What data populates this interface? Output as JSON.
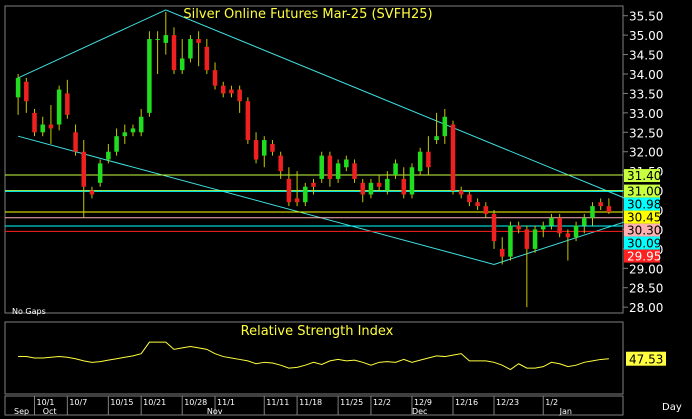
{
  "chart_data": [
    {
      "type": "candlestick",
      "title": "Silver Online Futures Mar-25 (SVFH25)",
      "gaps_label": "No Gaps",
      "period_label": "Day",
      "ylim": [
        27.85,
        35.75
      ],
      "y_ticks": [
        "35.50",
        "35.00",
        "34.50",
        "34.00",
        "33.50",
        "33.00",
        "32.50",
        "32.00",
        "31.50",
        "31.00",
        "30.50",
        "30.00",
        "29.50",
        "29.00",
        "28.50",
        "28.00"
      ],
      "x_day_labels": [
        "10/1",
        "10/7",
        "10/15",
        "10/21",
        "10/28",
        "11/1",
        "11/11",
        "11/18",
        "11/25",
        "12/2",
        "12/9",
        "12/16",
        "12/23",
        "1/2"
      ],
      "x_month_labels": [
        "Sep",
        "Oct",
        "Nov",
        "Dec",
        "Jan"
      ],
      "candles": [
        {
          "o": 33.4,
          "h": 34.0,
          "l": 32.95,
          "c": 33.9
        },
        {
          "o": 33.8,
          "h": 33.9,
          "l": 33.0,
          "c": 33.3
        },
        {
          "o": 33.0,
          "h": 33.1,
          "l": 32.4,
          "c": 32.5
        },
        {
          "o": 32.5,
          "h": 32.9,
          "l": 32.4,
          "c": 32.7
        },
        {
          "o": 32.7,
          "h": 33.2,
          "l": 32.2,
          "c": 32.6
        },
        {
          "o": 32.7,
          "h": 33.7,
          "l": 32.55,
          "c": 33.6
        },
        {
          "o": 33.5,
          "h": 33.85,
          "l": 32.85,
          "c": 32.95
        },
        {
          "o": 32.5,
          "h": 32.7,
          "l": 31.9,
          "c": 32.0
        },
        {
          "o": 32.0,
          "h": 32.3,
          "l": 30.3,
          "c": 31.1
        },
        {
          "o": 31.0,
          "h": 31.1,
          "l": 30.8,
          "c": 30.9
        },
        {
          "o": 31.2,
          "h": 31.8,
          "l": 31.1,
          "c": 31.7
        },
        {
          "o": 31.8,
          "h": 32.2,
          "l": 31.7,
          "c": 32.0
        },
        {
          "o": 32.0,
          "h": 32.6,
          "l": 31.9,
          "c": 32.4
        },
        {
          "o": 32.4,
          "h": 32.7,
          "l": 32.2,
          "c": 32.5
        },
        {
          "o": 32.5,
          "h": 32.7,
          "l": 32.4,
          "c": 32.6
        },
        {
          "o": 32.5,
          "h": 33.1,
          "l": 32.4,
          "c": 32.9
        },
        {
          "o": 33.0,
          "h": 35.1,
          "l": 32.9,
          "c": 34.9
        },
        {
          "o": 34.9,
          "h": 35.1,
          "l": 34.0,
          "c": 34.9
        },
        {
          "o": 34.8,
          "h": 35.6,
          "l": 34.5,
          "c": 35.0
        },
        {
          "o": 35.0,
          "h": 35.2,
          "l": 34.0,
          "c": 34.1
        },
        {
          "o": 34.1,
          "h": 34.9,
          "l": 34.0,
          "c": 34.4
        },
        {
          "o": 34.4,
          "h": 35.0,
          "l": 34.3,
          "c": 34.9
        },
        {
          "o": 34.9,
          "h": 35.1,
          "l": 34.2,
          "c": 34.8
        },
        {
          "o": 34.7,
          "h": 34.9,
          "l": 34.0,
          "c": 34.1
        },
        {
          "o": 34.1,
          "h": 34.3,
          "l": 33.6,
          "c": 33.7
        },
        {
          "o": 33.7,
          "h": 33.8,
          "l": 33.4,
          "c": 33.5
        },
        {
          "o": 33.6,
          "h": 33.7,
          "l": 33.4,
          "c": 33.5
        },
        {
          "o": 33.6,
          "h": 33.7,
          "l": 33.0,
          "c": 33.3
        },
        {
          "o": 33.3,
          "h": 33.4,
          "l": 32.2,
          "c": 32.3
        },
        {
          "o": 32.3,
          "h": 32.5,
          "l": 31.7,
          "c": 31.8
        },
        {
          "o": 31.9,
          "h": 32.4,
          "l": 31.6,
          "c": 32.3
        },
        {
          "o": 32.2,
          "h": 32.3,
          "l": 31.9,
          "c": 32.0
        },
        {
          "o": 31.9,
          "h": 32.0,
          "l": 31.3,
          "c": 31.5
        },
        {
          "o": 31.3,
          "h": 31.6,
          "l": 30.6,
          "c": 30.7
        },
        {
          "o": 30.8,
          "h": 31.5,
          "l": 30.6,
          "c": 30.7
        },
        {
          "o": 30.7,
          "h": 31.2,
          "l": 30.6,
          "c": 31.1
        },
        {
          "o": 31.2,
          "h": 31.3,
          "l": 30.9,
          "c": 31.1
        },
        {
          "o": 31.3,
          "h": 32.0,
          "l": 31.2,
          "c": 31.9
        },
        {
          "o": 31.9,
          "h": 32.0,
          "l": 31.1,
          "c": 31.3
        },
        {
          "o": 31.3,
          "h": 31.8,
          "l": 31.2,
          "c": 31.7
        },
        {
          "o": 31.6,
          "h": 31.9,
          "l": 31.5,
          "c": 31.8
        },
        {
          "o": 31.7,
          "h": 31.8,
          "l": 31.2,
          "c": 31.3
        },
        {
          "o": 31.2,
          "h": 31.3,
          "l": 30.7,
          "c": 30.9
        },
        {
          "o": 30.9,
          "h": 31.3,
          "l": 30.8,
          "c": 31.2
        },
        {
          "o": 31.2,
          "h": 31.4,
          "l": 31.0,
          "c": 31.1
        },
        {
          "o": 31.0,
          "h": 31.5,
          "l": 30.9,
          "c": 31.3
        },
        {
          "o": 31.4,
          "h": 31.8,
          "l": 31.3,
          "c": 31.7
        },
        {
          "o": 31.3,
          "h": 31.6,
          "l": 30.8,
          "c": 30.9
        },
        {
          "o": 30.9,
          "h": 31.7,
          "l": 30.8,
          "c": 31.6
        },
        {
          "o": 31.5,
          "h": 32.1,
          "l": 31.4,
          "c": 32.0
        },
        {
          "o": 32.0,
          "h": 32.4,
          "l": 31.4,
          "c": 31.6
        },
        {
          "o": 32.3,
          "h": 33.0,
          "l": 32.2,
          "c": 32.4
        },
        {
          "o": 32.4,
          "h": 33.1,
          "l": 32.2,
          "c": 32.9
        },
        {
          "o": 32.7,
          "h": 32.8,
          "l": 30.9,
          "c": 31.0
        },
        {
          "o": 31.0,
          "h": 31.1,
          "l": 30.8,
          "c": 30.9
        },
        {
          "o": 30.9,
          "h": 31.0,
          "l": 30.6,
          "c": 30.7
        },
        {
          "o": 30.7,
          "h": 30.8,
          "l": 30.5,
          "c": 30.6
        },
        {
          "o": 30.6,
          "h": 30.7,
          "l": 30.3,
          "c": 30.4
        },
        {
          "o": 30.4,
          "h": 30.5,
          "l": 29.5,
          "c": 29.7
        },
        {
          "o": 29.5,
          "h": 29.8,
          "l": 29.1,
          "c": 29.3
        },
        {
          "o": 29.3,
          "h": 30.2,
          "l": 29.2,
          "c": 30.1
        },
        {
          "o": 30.1,
          "h": 30.2,
          "l": 29.9,
          "c": 30.0
        },
        {
          "o": 30.0,
          "h": 30.1,
          "l": 28.0,
          "c": 29.5
        },
        {
          "o": 29.5,
          "h": 30.1,
          "l": 29.4,
          "c": 30.0
        },
        {
          "o": 30.0,
          "h": 30.2,
          "l": 29.8,
          "c": 30.1
        },
        {
          "o": 30.1,
          "h": 30.4,
          "l": 30.0,
          "c": 30.3
        },
        {
          "o": 30.3,
          "h": 30.4,
          "l": 29.8,
          "c": 29.9
        },
        {
          "o": 29.9,
          "h": 30.0,
          "l": 29.2,
          "c": 29.8
        },
        {
          "o": 29.8,
          "h": 30.2,
          "l": 29.7,
          "c": 30.1
        },
        {
          "o": 30.1,
          "h": 30.4,
          "l": 29.9,
          "c": 30.3
        },
        {
          "o": 30.3,
          "h": 30.7,
          "l": 30.1,
          "c": 30.6
        },
        {
          "o": 30.7,
          "h": 30.8,
          "l": 30.5,
          "c": 30.6
        },
        {
          "o": 30.6,
          "h": 30.8,
          "l": 30.4,
          "c": 30.45
        }
      ],
      "hlines": [
        {
          "value": 31.4,
          "label": "31.40",
          "color": "#c8ff40",
          "text_color": "#000000"
        },
        {
          "value": 31.0,
          "label": "31.00",
          "color": "#c8ff40",
          "text_color": "#000000"
        },
        {
          "value": 30.98,
          "label": "30.98",
          "color": "#00ffff",
          "text_color": "#000000"
        },
        {
          "value": 30.45,
          "label": "30.45",
          "color": "#ffff00",
          "text_color": "#000000"
        },
        {
          "value": 30.3,
          "label": "30.30",
          "color": "#ffb0b0",
          "text_color": "#000000"
        },
        {
          "value": 30.09,
          "label": "30.09",
          "color": "#00ffff",
          "text_color": "#000000"
        },
        {
          "value": 29.95,
          "label": "29.95",
          "color": "#ff2020",
          "text_color": "#ffffff"
        }
      ],
      "channel": {
        "upper": [
          [
            0,
            33.9
          ],
          [
            18,
            35.65
          ],
          [
            74,
            30.8
          ]
        ],
        "lower": [
          [
            0,
            32.4
          ],
          [
            58,
            29.1
          ],
          [
            74,
            30.2
          ]
        ]
      },
      "colors": {
        "up": "#20dd20",
        "down": "#ee2020",
        "grid": "#808080",
        "channel": "#40e0e0",
        "axis_text": "#ffffff"
      }
    },
    {
      "type": "line",
      "title": "Relative Strength Index",
      "last_value": "47.53",
      "ylim": [
        0,
        100
      ],
      "values": [
        52,
        52,
        50,
        50,
        51,
        52,
        51,
        49,
        46,
        44,
        45,
        47,
        49,
        51,
        53,
        56,
        72,
        72,
        72,
        62,
        64,
        66,
        64,
        62,
        56,
        52,
        50,
        48,
        46,
        42,
        44,
        43,
        40,
        36,
        37,
        40,
        44,
        41,
        46,
        48,
        46,
        47,
        44,
        40,
        44,
        45,
        44,
        48,
        44,
        47,
        50,
        53,
        52,
        54,
        56,
        46,
        46,
        46,
        44,
        40,
        34,
        42,
        36,
        36,
        38,
        44,
        42,
        38,
        40,
        44,
        46,
        48,
        49
      ],
      "color": "#ffff40"
    }
  ]
}
